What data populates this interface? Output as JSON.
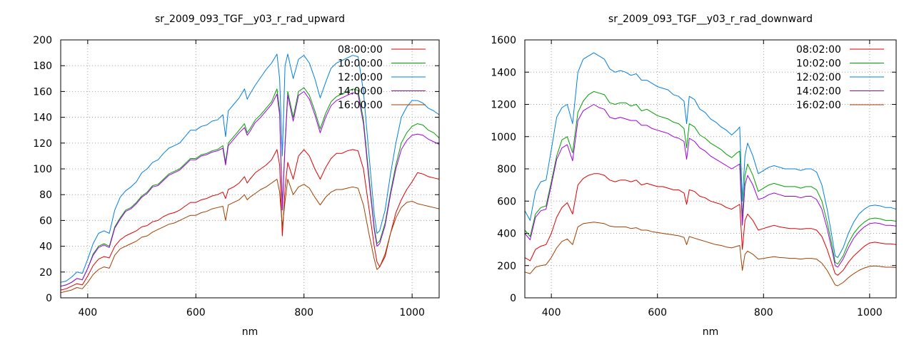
{
  "chart_data": [
    {
      "type": "line",
      "title": "sr_2009_093_TGF__y03_r_rad_upward",
      "xlabel": "nm",
      "ylabel": "",
      "xlim": [
        350,
        1050
      ],
      "ylim": [
        0,
        200
      ],
      "xticks": [
        400,
        600,
        800,
        1000
      ],
      "yticks": [
        0,
        20,
        40,
        60,
        80,
        100,
        120,
        140,
        160,
        180,
        200
      ],
      "grid": true,
      "legend_position": "top-right",
      "x": [
        350,
        360,
        370,
        380,
        390,
        400,
        410,
        420,
        430,
        440,
        450,
        460,
        470,
        480,
        490,
        500,
        510,
        520,
        530,
        540,
        550,
        560,
        570,
        580,
        590,
        600,
        610,
        620,
        630,
        640,
        650,
        655,
        660,
        670,
        680,
        690,
        695,
        700,
        710,
        720,
        730,
        740,
        750,
        755,
        760,
        765,
        770,
        780,
        790,
        800,
        810,
        820,
        830,
        840,
        850,
        860,
        870,
        880,
        890,
        900,
        910,
        920,
        930,
        935,
        940,
        950,
        960,
        970,
        980,
        990,
        1000,
        1010,
        1020,
        1030,
        1040,
        1050
      ],
      "series": [
        {
          "name": "08:00:00",
          "color": "#e00000",
          "values": [
            6,
            7,
            9,
            11,
            10,
            17,
            25,
            30,
            32,
            31,
            40,
            45,
            48,
            50,
            52,
            55,
            56,
            59,
            60,
            63,
            65,
            66,
            68,
            71,
            74,
            74,
            76,
            77,
            79,
            80,
            82,
            77,
            84,
            86,
            89,
            94,
            89,
            92,
            97,
            100,
            103,
            107,
            115,
            103,
            48,
            85,
            105,
            92,
            110,
            115,
            110,
            100,
            92,
            101,
            108,
            112,
            112,
            114,
            115,
            114,
            100,
            70,
            40,
            28,
            24,
            32,
            50,
            66,
            76,
            84,
            90,
            97,
            96,
            94,
            93,
            92
          ]
        },
        {
          "name": "10:00:00",
          "color": "#00a000",
          "values": [
            9,
            10,
            12,
            15,
            14,
            23,
            34,
            40,
            42,
            40,
            55,
            62,
            68,
            70,
            74,
            79,
            82,
            87,
            88,
            92,
            96,
            98,
            100,
            104,
            108,
            108,
            111,
            112,
            114,
            115,
            118,
            105,
            120,
            125,
            130,
            135,
            128,
            131,
            138,
            142,
            147,
            152,
            162,
            145,
            70,
            120,
            160,
            140,
            160,
            163,
            157,
            145,
            131,
            143,
            152,
            156,
            158,
            160,
            162,
            161,
            138,
            95,
            55,
            42,
            44,
            58,
            82,
            103,
            120,
            128,
            133,
            135,
            134,
            130,
            128,
            124
          ]
        },
        {
          "name": "12:00:00",
          "color": "#0080e0",
          "values": [
            12,
            13,
            16,
            20,
            19,
            30,
            42,
            50,
            52,
            50,
            68,
            78,
            83,
            86,
            90,
            97,
            100,
            105,
            107,
            112,
            116,
            118,
            120,
            125,
            130,
            130,
            133,
            134,
            137,
            138,
            142,
            125,
            145,
            150,
            155,
            162,
            154,
            158,
            165,
            171,
            177,
            182,
            189,
            170,
            110,
            180,
            189,
            170,
            185,
            188,
            182,
            170,
            155,
            167,
            178,
            182,
            184,
            186,
            188,
            187,
            160,
            112,
            65,
            50,
            52,
            68,
            96,
            120,
            140,
            148,
            153,
            153,
            151,
            147,
            145,
            142
          ]
        },
        {
          "name": "14:00:00",
          "color": "#a000e0",
          "values": [
            9,
            10,
            12,
            15,
            14,
            23,
            33,
            39,
            41,
            39,
            54,
            61,
            67,
            69,
            73,
            78,
            81,
            86,
            87,
            91,
            95,
            97,
            99,
            103,
            107,
            107,
            110,
            111,
            113,
            114,
            116,
            103,
            118,
            123,
            128,
            132,
            126,
            129,
            136,
            140,
            145,
            150,
            158,
            142,
            68,
            118,
            157,
            137,
            157,
            160,
            154,
            142,
            128,
            140,
            149,
            153,
            155,
            157,
            159,
            158,
            135,
            92,
            53,
            40,
            42,
            56,
            80,
            100,
            115,
            122,
            126,
            127,
            126,
            123,
            121,
            119
          ]
        },
        {
          "name": "16:00:00",
          "color": "#a04000",
          "values": [
            4,
            5,
            6,
            8,
            7,
            12,
            18,
            22,
            24,
            23,
            33,
            38,
            40,
            42,
            44,
            47,
            48,
            51,
            53,
            55,
            57,
            58,
            60,
            62,
            64,
            64,
            66,
            67,
            69,
            70,
            71,
            60,
            72,
            74,
            76,
            80,
            76,
            78,
            81,
            84,
            86,
            89,
            92,
            82,
            55,
            75,
            92,
            80,
            86,
            88,
            85,
            78,
            72,
            78,
            82,
            84,
            84,
            85,
            86,
            85,
            72,
            50,
            30,
            22,
            24,
            34,
            50,
            62,
            70,
            74,
            75,
            73,
            72,
            71,
            70,
            69
          ]
        }
      ]
    },
    {
      "type": "line",
      "title": "sr_2009_093_TGF__y03_r_rad_downward",
      "xlabel": "nm",
      "ylabel": "",
      "xlim": [
        350,
        1050
      ],
      "ylim": [
        0,
        1600
      ],
      "xticks": [
        400,
        600,
        800,
        1000
      ],
      "yticks": [
        0,
        200,
        400,
        600,
        800,
        1000,
        1200,
        1400,
        1600
      ],
      "grid": true,
      "legend_position": "top-right",
      "x": [
        350,
        360,
        370,
        380,
        390,
        400,
        410,
        420,
        430,
        440,
        450,
        460,
        470,
        480,
        490,
        500,
        510,
        520,
        530,
        540,
        550,
        560,
        570,
        580,
        590,
        600,
        610,
        620,
        630,
        640,
        650,
        655,
        660,
        670,
        680,
        690,
        700,
        710,
        720,
        730,
        740,
        750,
        755,
        760,
        765,
        770,
        780,
        790,
        800,
        810,
        820,
        830,
        840,
        850,
        860,
        870,
        880,
        890,
        900,
        910,
        920,
        930,
        935,
        940,
        950,
        960,
        970,
        980,
        990,
        1000,
        1010,
        1020,
        1030,
        1040,
        1050
      ],
      "series": [
        {
          "name": "08:02:00",
          "color": "#e00000",
          "values": [
            250,
            230,
            300,
            320,
            330,
            400,
            500,
            560,
            590,
            520,
            700,
            740,
            760,
            770,
            770,
            760,
            730,
            720,
            730,
            730,
            720,
            730,
            700,
            710,
            700,
            690,
            690,
            680,
            670,
            670,
            650,
            580,
            670,
            660,
            630,
            620,
            600,
            590,
            580,
            560,
            550,
            570,
            580,
            300,
            480,
            520,
            480,
            420,
            430,
            440,
            450,
            440,
            435,
            430,
            430,
            425,
            430,
            430,
            420,
            380,
            300,
            200,
            150,
            140,
            170,
            220,
            260,
            290,
            320,
            340,
            345,
            340,
            335,
            335,
            330
          ]
        },
        {
          "name": "10:02:00",
          "color": "#00a000",
          "values": [
            420,
            380,
            520,
            560,
            570,
            720,
            880,
            980,
            1000,
            900,
            1150,
            1220,
            1260,
            1280,
            1270,
            1260,
            1210,
            1200,
            1210,
            1210,
            1190,
            1200,
            1160,
            1170,
            1150,
            1130,
            1120,
            1110,
            1090,
            1080,
            1050,
            930,
            1080,
            1060,
            1010,
            990,
            960,
            940,
            920,
            890,
            870,
            900,
            910,
            500,
            760,
            830,
            760,
            660,
            680,
            700,
            710,
            700,
            690,
            690,
            690,
            680,
            690,
            690,
            670,
            600,
            470,
            310,
            220,
            210,
            260,
            340,
            400,
            440,
            470,
            490,
            495,
            490,
            480,
            480,
            475
          ]
        },
        {
          "name": "12:02:00",
          "color": "#0080e0",
          "values": [
            540,
            480,
            660,
            720,
            730,
            920,
            1120,
            1180,
            1200,
            1080,
            1400,
            1480,
            1500,
            1520,
            1500,
            1480,
            1420,
            1400,
            1410,
            1400,
            1380,
            1390,
            1350,
            1350,
            1330,
            1310,
            1300,
            1290,
            1260,
            1250,
            1220,
            1080,
            1250,
            1230,
            1170,
            1150,
            1110,
            1090,
            1060,
            1040,
            1010,
            1040,
            1060,
            600,
            880,
            960,
            880,
            770,
            790,
            810,
            820,
            810,
            800,
            800,
            800,
            790,
            800,
            800,
            780,
            700,
            550,
            360,
            260,
            250,
            310,
            400,
            470,
            520,
            550,
            570,
            575,
            570,
            560,
            560,
            550
          ]
        },
        {
          "name": "14:02:00",
          "color": "#a000e0",
          "values": [
            400,
            360,
            500,
            540,
            550,
            700,
            860,
            930,
            950,
            850,
            1100,
            1160,
            1180,
            1200,
            1180,
            1170,
            1120,
            1110,
            1120,
            1110,
            1100,
            1100,
            1070,
            1070,
            1050,
            1040,
            1030,
            1020,
            1000,
            990,
            970,
            860,
            990,
            970,
            930,
            910,
            880,
            860,
            840,
            820,
            800,
            820,
            830,
            450,
            700,
            760,
            700,
            610,
            620,
            640,
            650,
            640,
            630,
            630,
            630,
            620,
            630,
            630,
            610,
            550,
            430,
            280,
            200,
            190,
            240,
            310,
            370,
            410,
            440,
            460,
            465,
            460,
            450,
            450,
            445
          ]
        },
        {
          "name": "16:02:00",
          "color": "#a04000",
          "values": [
            160,
            150,
            190,
            200,
            205,
            250,
            310,
            350,
            365,
            330,
            440,
            460,
            465,
            470,
            465,
            460,
            445,
            440,
            440,
            440,
            430,
            435,
            420,
            420,
            410,
            405,
            400,
            395,
            390,
            385,
            375,
            330,
            380,
            370,
            360,
            350,
            340,
            330,
            325,
            315,
            310,
            320,
            325,
            170,
            270,
            290,
            270,
            240,
            245,
            250,
            255,
            250,
            248,
            245,
            245,
            240,
            245,
            245,
            240,
            215,
            170,
            110,
            80,
            75,
            95,
            125,
            150,
            170,
            185,
            195,
            198,
            195,
            190,
            190,
            188
          ]
        }
      ]
    }
  ]
}
